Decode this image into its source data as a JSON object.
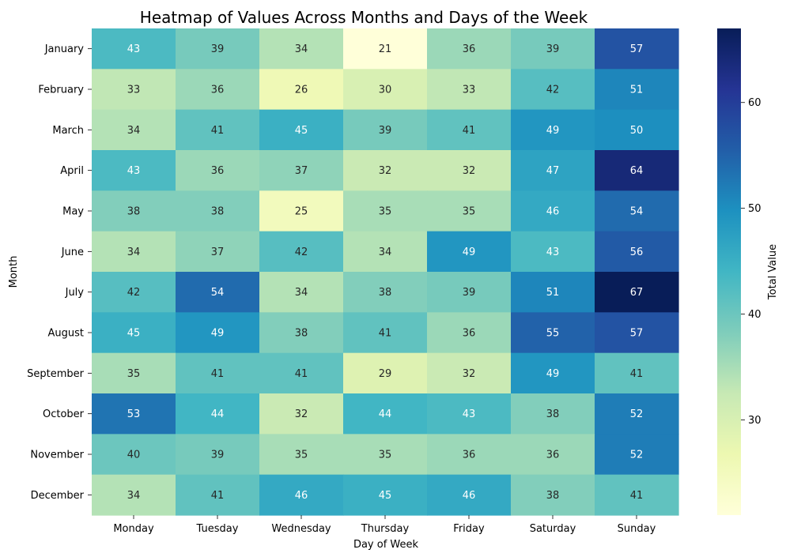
{
  "chart_data": {
    "type": "heatmap",
    "title": "Heatmap of Values Across Months and Days of the Week",
    "xlabel": "Day of Week",
    "ylabel": "Month",
    "x_categories": [
      "Monday",
      "Tuesday",
      "Wednesday",
      "Thursday",
      "Friday",
      "Saturday",
      "Sunday"
    ],
    "y_categories": [
      "January",
      "February",
      "March",
      "April",
      "May",
      "June",
      "July",
      "August",
      "September",
      "October",
      "November",
      "December"
    ],
    "values": [
      [
        43,
        39,
        34,
        21,
        36,
        39,
        57
      ],
      [
        33,
        36,
        26,
        30,
        33,
        42,
        51
      ],
      [
        34,
        41,
        45,
        39,
        41,
        49,
        50
      ],
      [
        43,
        36,
        37,
        32,
        32,
        47,
        64
      ],
      [
        38,
        38,
        25,
        35,
        35,
        46,
        54
      ],
      [
        34,
        37,
        42,
        34,
        49,
        43,
        56
      ],
      [
        42,
        54,
        34,
        38,
        39,
        51,
        67
      ],
      [
        45,
        49,
        38,
        41,
        36,
        55,
        57
      ],
      [
        35,
        41,
        41,
        29,
        32,
        49,
        41
      ],
      [
        53,
        44,
        32,
        44,
        43,
        38,
        52
      ],
      [
        40,
        39,
        35,
        35,
        36,
        36,
        52
      ],
      [
        34,
        41,
        46,
        45,
        46,
        38,
        41
      ]
    ],
    "colormap": "YlGnBu",
    "value_range": [
      21,
      67
    ],
    "colorbar": {
      "label": "Total Value",
      "ticks": [
        30,
        40,
        50,
        60
      ]
    },
    "annotations": true
  }
}
